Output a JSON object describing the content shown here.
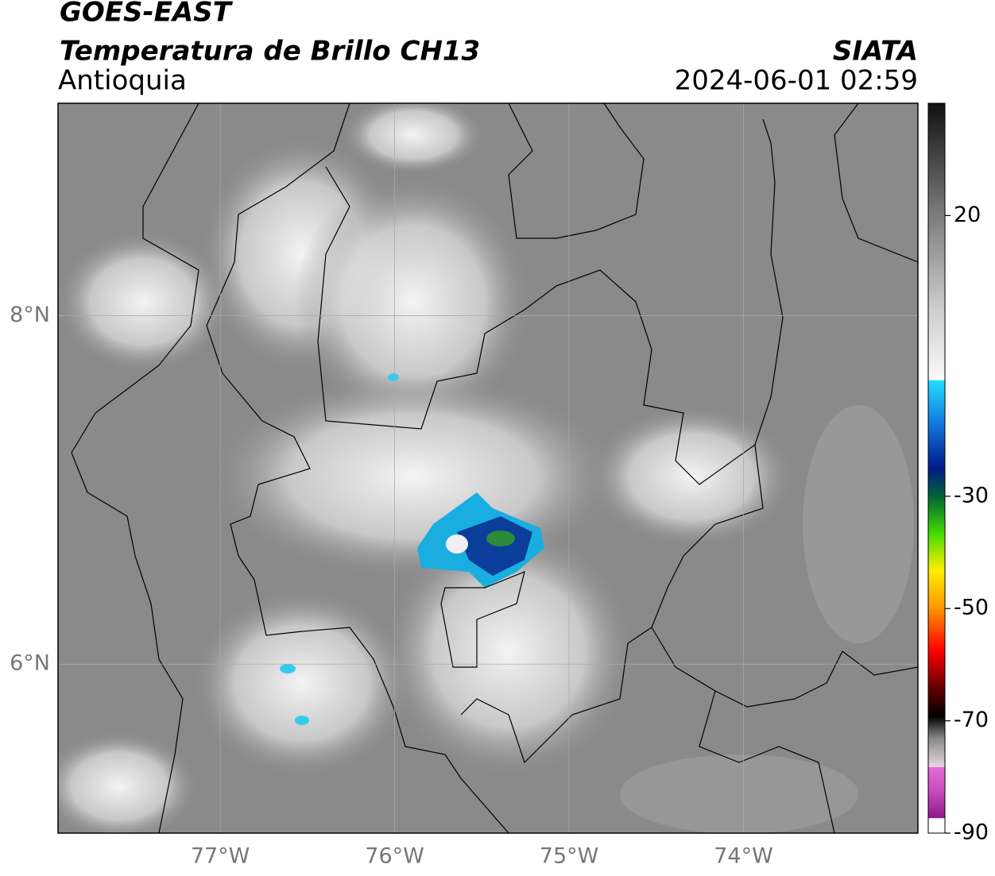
{
  "header": {
    "title": "GOES-EAST",
    "subtitle": "Temperatura de Brillo CH13",
    "region": "Antioquia",
    "source": "SIATA",
    "datetime": "2024-06-01 02:59"
  },
  "map": {
    "xlim": [
      -77.93,
      -73.0
    ],
    "ylim": [
      5.03,
      9.22
    ],
    "xticks": [
      {
        "value": -77,
        "label": "77°W"
      },
      {
        "value": -76,
        "label": "76°W"
      },
      {
        "value": -75,
        "label": "75°W"
      },
      {
        "value": -74,
        "label": "74°W"
      }
    ],
    "yticks": [
      {
        "value": 8,
        "label": "8°N"
      },
      {
        "value": 6,
        "label": "6°N"
      }
    ],
    "grid": true
  },
  "colorbar": {
    "lim": [
      -90,
      40
    ],
    "ticks": [
      20,
      -30,
      -50,
      -70,
      -90
    ]
  }
}
